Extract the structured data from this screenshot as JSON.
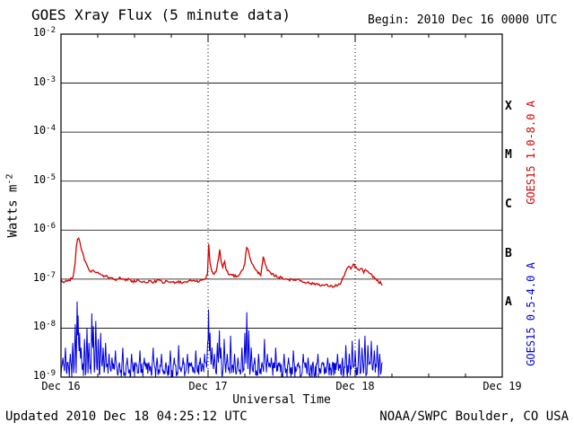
{
  "header": {
    "title": "GOES Xray Flux (5 minute data)",
    "begin": "Begin: 2010 Dec 16 0000 UTC"
  },
  "footer": {
    "updated": "Updated 2010 Dec 18 04:25:12 UTC",
    "credit": "NOAA/SWPC Boulder, CO USA"
  },
  "axes": {
    "x_title": "Universal Time",
    "y_title_base": "Watts m",
    "y_title_exp": "-2"
  },
  "labels": {
    "red_series": "GOES15 1.0-8.0 A",
    "blue_series": "GOES15 0.5-4.0 A"
  },
  "chart_data": {
    "type": "line",
    "title": "GOES Xray Flux (5 minute data)",
    "xlabel": "Universal Time",
    "ylabel": "Watts m^-2",
    "x_unit": "hours since 2010 Dec 16 0000 UTC",
    "xlim": [
      0,
      72
    ],
    "ylim_log10": [
      -9,
      -2
    ],
    "t_end": 52.4,
    "grid": "log-decades horizontal solid, day boundaries vertical dotted",
    "y_tick_exponents": [
      -2,
      -3,
      -4,
      -5,
      -6,
      -7,
      -8,
      -9
    ],
    "x_ticks": [
      {
        "t": 0,
        "label": "Dec 16"
      },
      {
        "t": 24,
        "label": "Dec 17"
      },
      {
        "t": 48,
        "label": "Dec 18"
      },
      {
        "t": 72,
        "label": "Dec 19"
      }
    ],
    "flare_classes": [
      {
        "label": "X",
        "log_mid": -3.5
      },
      {
        "label": "M",
        "log_mid": -4.5
      },
      {
        "label": "C",
        "log_mid": -5.5
      },
      {
        "label": "B",
        "log_mid": -6.5
      },
      {
        "label": "A",
        "log_mid": -7.5
      }
    ],
    "series": [
      {
        "name": "GOES15 1.0-8.0 A",
        "color": "#d40000",
        "points": [
          [
            0,
            9.5e-08
          ],
          [
            0.4,
            8.5e-08
          ],
          [
            0.8,
            9.5e-08
          ],
          [
            1.2,
            9e-08
          ],
          [
            1.6,
            1e-07
          ],
          [
            2.0,
            1.15e-07
          ],
          [
            2.3,
            2.2e-07
          ],
          [
            2.5,
            4.5e-07
          ],
          [
            2.7,
            6.2e-07
          ],
          [
            2.9,
            6.6e-07
          ],
          [
            3.1,
            5.5e-07
          ],
          [
            3.4,
            3.8e-07
          ],
          [
            3.7,
            2.8e-07
          ],
          [
            4.0,
            2.2e-07
          ],
          [
            4.4,
            1.7e-07
          ],
          [
            4.8,
            1.45e-07
          ],
          [
            5.2,
            1.5e-07
          ],
          [
            5.6,
            1.35e-07
          ],
          [
            6.0,
            1.45e-07
          ],
          [
            6.4,
            1.25e-07
          ],
          [
            6.8,
            1.2e-07
          ],
          [
            7.2,
            1.15e-07
          ],
          [
            7.8,
            1.1e-07
          ],
          [
            8.4,
            1.05e-07
          ],
          [
            9.0,
            1e-07
          ],
          [
            9.6,
            1.05e-07
          ],
          [
            10.2,
            9.5e-08
          ],
          [
            11.0,
            1e-07
          ],
          [
            11.8,
            9e-08
          ],
          [
            12.6,
            9.5e-08
          ],
          [
            13.4,
            8.5e-08
          ],
          [
            14.2,
            9e-08
          ],
          [
            15.0,
            8.5e-08
          ],
          [
            15.8,
            9.5e-08
          ],
          [
            16.6,
            8.5e-08
          ],
          [
            17.4,
            9e-08
          ],
          [
            18.2,
            8.5e-08
          ],
          [
            19.0,
            9e-08
          ],
          [
            19.8,
            8.5e-08
          ],
          [
            20.6,
            9e-08
          ],
          [
            21.4,
            9.5e-08
          ],
          [
            22.2,
            9e-08
          ],
          [
            23.0,
            9.5e-08
          ],
          [
            23.6,
            1e-07
          ],
          [
            23.9,
            1.3e-07
          ],
          [
            24.1,
            5e-07
          ],
          [
            24.3,
            2.2e-07
          ],
          [
            24.6,
            1.4e-07
          ],
          [
            25.0,
            1.25e-07
          ],
          [
            25.4,
            1.6e-07
          ],
          [
            25.7,
            2.6e-07
          ],
          [
            25.9,
            4e-07
          ],
          [
            26.1,
            2.4e-07
          ],
          [
            26.4,
            1.7e-07
          ],
          [
            26.7,
            2.4e-07
          ],
          [
            26.9,
            1.6e-07
          ],
          [
            27.3,
            1.3e-07
          ],
          [
            27.8,
            1.2e-07
          ],
          [
            28.4,
            1.15e-07
          ],
          [
            29.0,
            1.2e-07
          ],
          [
            29.6,
            1.5e-07
          ],
          [
            30.0,
            2.2e-07
          ],
          [
            30.3,
            4.6e-07
          ],
          [
            30.6,
            3.6e-07
          ],
          [
            31.0,
            2.4e-07
          ],
          [
            31.5,
            1.7e-07
          ],
          [
            32.0,
            1.4e-07
          ],
          [
            32.6,
            1.25e-07
          ],
          [
            33.0,
            2.9e-07
          ],
          [
            33.3,
            2e-07
          ],
          [
            33.7,
            1.5e-07
          ],
          [
            34.2,
            1.3e-07
          ],
          [
            34.8,
            1.2e-07
          ],
          [
            35.5,
            1.1e-07
          ],
          [
            36.2,
            1.05e-07
          ],
          [
            37.0,
            1e-07
          ],
          [
            37.8,
            9.5e-08
          ],
          [
            38.6,
            1e-07
          ],
          [
            39.4,
            9e-08
          ],
          [
            40.2,
            8.5e-08
          ],
          [
            41.0,
            8e-08
          ],
          [
            41.8,
            8e-08
          ],
          [
            42.6,
            7.5e-08
          ],
          [
            43.4,
            7.5e-08
          ],
          [
            44.2,
            7e-08
          ],
          [
            45.0,
            7.5e-08
          ],
          [
            45.6,
            8e-08
          ],
          [
            46.1,
            1.1e-07
          ],
          [
            46.5,
            1.5e-07
          ],
          [
            46.9,
            1.8e-07
          ],
          [
            47.3,
            1.6e-07
          ],
          [
            47.7,
            2e-07
          ],
          [
            48.1,
            1.75e-07
          ],
          [
            48.5,
            1.5e-07
          ],
          [
            49.0,
            1.65e-07
          ],
          [
            49.4,
            1.4e-07
          ],
          [
            49.8,
            1.55e-07
          ],
          [
            50.2,
            1.3e-07
          ],
          [
            50.7,
            1.2e-07
          ],
          [
            51.2,
            1.05e-07
          ],
          [
            51.7,
            9e-08
          ],
          [
            52.1,
            8.5e-08
          ],
          [
            52.4,
            7.5e-08
          ]
        ]
      },
      {
        "name": "GOES15 0.5-4.0 A",
        "color": "#0000dd",
        "noise_band": [
          1e-09,
          2e-09
        ],
        "spikes": [
          [
            0.3,
            2.5e-09
          ],
          [
            0.7,
            4e-09
          ],
          [
            1.1,
            2e-09
          ],
          [
            1.5,
            3e-09
          ],
          [
            1.9,
            5e-09
          ],
          [
            2.3,
            1.2e-08
          ],
          [
            2.6,
            3.5e-08
          ],
          [
            2.8,
            1.8e-08
          ],
          [
            3.0,
            8e-09
          ],
          [
            3.3,
            4e-09
          ],
          [
            3.8,
            6e-09
          ],
          [
            4.2,
            1e-08
          ],
          [
            4.6,
            5e-09
          ],
          [
            5.0,
            2e-08
          ],
          [
            5.3,
            1.1e-08
          ],
          [
            5.7,
            1.4e-08
          ],
          [
            6.1,
            6e-09
          ],
          [
            6.5,
            8e-09
          ],
          [
            6.9,
            4e-09
          ],
          [
            7.3,
            5e-09
          ],
          [
            7.8,
            3e-09
          ],
          [
            8.3,
            2.5e-09
          ],
          [
            8.9,
            3.5e-09
          ],
          [
            9.5,
            2e-09
          ],
          [
            10.1,
            4e-09
          ],
          [
            10.8,
            2.5e-09
          ],
          [
            11.5,
            3e-09
          ],
          [
            12.2,
            2e-09
          ],
          [
            12.9,
            3.5e-09
          ],
          [
            13.6,
            2.5e-09
          ],
          [
            14.3,
            2e-09
          ],
          [
            15.0,
            4e-09
          ],
          [
            15.7,
            2.5e-09
          ],
          [
            16.4,
            3e-09
          ],
          [
            17.1,
            2e-09
          ],
          [
            17.8,
            3.5e-09
          ],
          [
            18.5,
            2.5e-09
          ],
          [
            19.2,
            4.5e-09
          ],
          [
            19.9,
            2.5e-09
          ],
          [
            20.6,
            3e-09
          ],
          [
            21.3,
            2e-09
          ],
          [
            22.0,
            3.5e-09
          ],
          [
            22.7,
            2.5e-09
          ],
          [
            23.4,
            3e-09
          ],
          [
            23.9,
            5e-09
          ],
          [
            24.1,
            2.4e-08
          ],
          [
            24.3,
            8e-09
          ],
          [
            24.6,
            4e-09
          ],
          [
            25.0,
            3e-09
          ],
          [
            25.5,
            5e-09
          ],
          [
            25.8,
            9e-09
          ],
          [
            26.1,
            4e-09
          ],
          [
            26.6,
            6e-09
          ],
          [
            27.1,
            3e-09
          ],
          [
            27.7,
            7e-09
          ],
          [
            28.3,
            3e-09
          ],
          [
            28.9,
            2.5e-09
          ],
          [
            29.5,
            4e-09
          ],
          [
            30.0,
            8e-09
          ],
          [
            30.3,
            2.1e-08
          ],
          [
            30.6,
            9e-09
          ],
          [
            31.0,
            4e-09
          ],
          [
            31.6,
            2.5e-09
          ],
          [
            32.2,
            3e-09
          ],
          [
            32.8,
            2e-09
          ],
          [
            33.2,
            6e-09
          ],
          [
            33.7,
            3e-09
          ],
          [
            34.3,
            2.5e-09
          ],
          [
            35.0,
            4e-09
          ],
          [
            35.7,
            2e-09
          ],
          [
            36.4,
            3e-09
          ],
          [
            37.1,
            2.5e-09
          ],
          [
            37.9,
            3.5e-09
          ],
          [
            38.7,
            2e-09
          ],
          [
            39.5,
            3e-09
          ],
          [
            40.3,
            2.5e-09
          ],
          [
            41.1,
            2e-09
          ],
          [
            41.9,
            3e-09
          ],
          [
            42.7,
            2e-09
          ],
          [
            43.5,
            2.5e-09
          ],
          [
            44.3,
            2e-09
          ],
          [
            45.1,
            3e-09
          ],
          [
            45.9,
            2.5e-09
          ],
          [
            46.5,
            4.5e-09
          ],
          [
            47.0,
            3e-09
          ],
          [
            47.5,
            5.5e-09
          ],
          [
            48.0,
            3.5e-09
          ],
          [
            48.6,
            6e-09
          ],
          [
            49.1,
            4e-09
          ],
          [
            49.6,
            7e-09
          ],
          [
            50.1,
            4.5e-09
          ],
          [
            50.6,
            5.5e-09
          ],
          [
            51.1,
            3.5e-09
          ],
          [
            51.6,
            4.5e-09
          ],
          [
            52.0,
            3e-09
          ],
          [
            52.4,
            2e-09
          ]
        ]
      }
    ]
  }
}
